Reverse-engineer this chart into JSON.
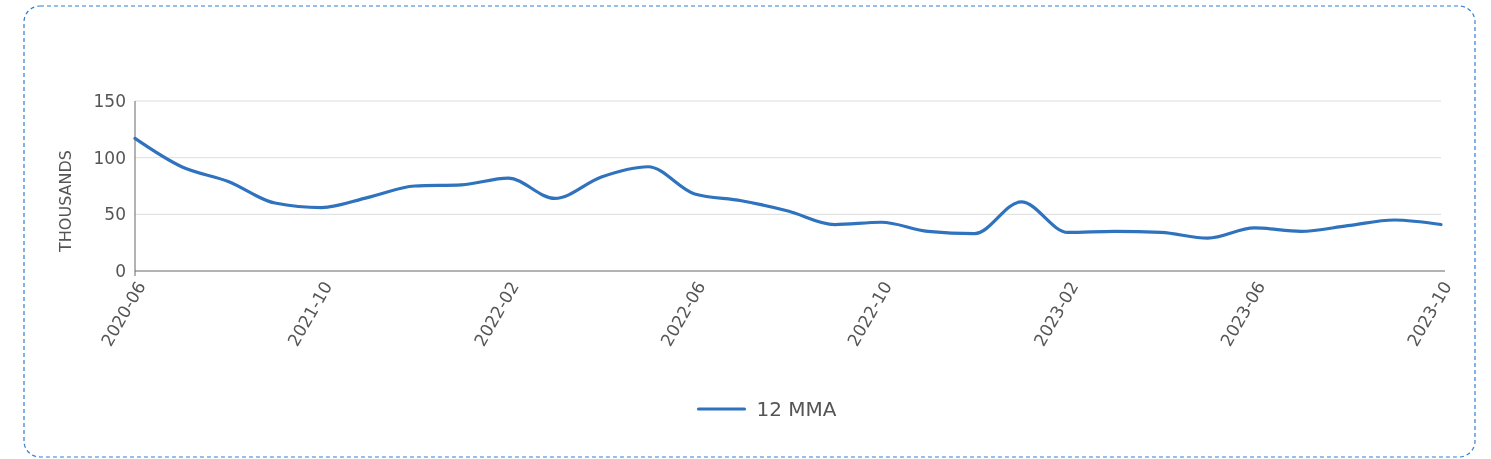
{
  "chart_data": {
    "type": "line",
    "ylabel": "THOUSANDS",
    "categories": [
      "2020-06",
      null,
      null,
      null,
      "2021-10",
      null,
      null,
      null,
      "2022-02",
      null,
      null,
      null,
      "2022-06",
      null,
      null,
      null,
      "2022-10",
      null,
      null,
      null,
      "2023-02",
      null,
      null,
      null,
      "2023-06",
      null,
      null,
      null,
      "2023-10"
    ],
    "series": [
      {
        "name": "12 MMA",
        "color": "#2f72bd",
        "values": [
          117,
          92,
          79,
          60,
          56,
          65,
          75,
          76,
          82,
          64,
          83,
          92,
          68,
          62,
          53,
          41,
          43,
          35,
          33,
          61,
          34,
          35,
          34,
          29,
          38,
          35,
          40,
          45,
          41
        ]
      }
    ],
    "ylim": [
      0,
      150
    ],
    "yticks": [
      0,
      50,
      100,
      150
    ],
    "grid": "y",
    "legend": "bottom"
  }
}
